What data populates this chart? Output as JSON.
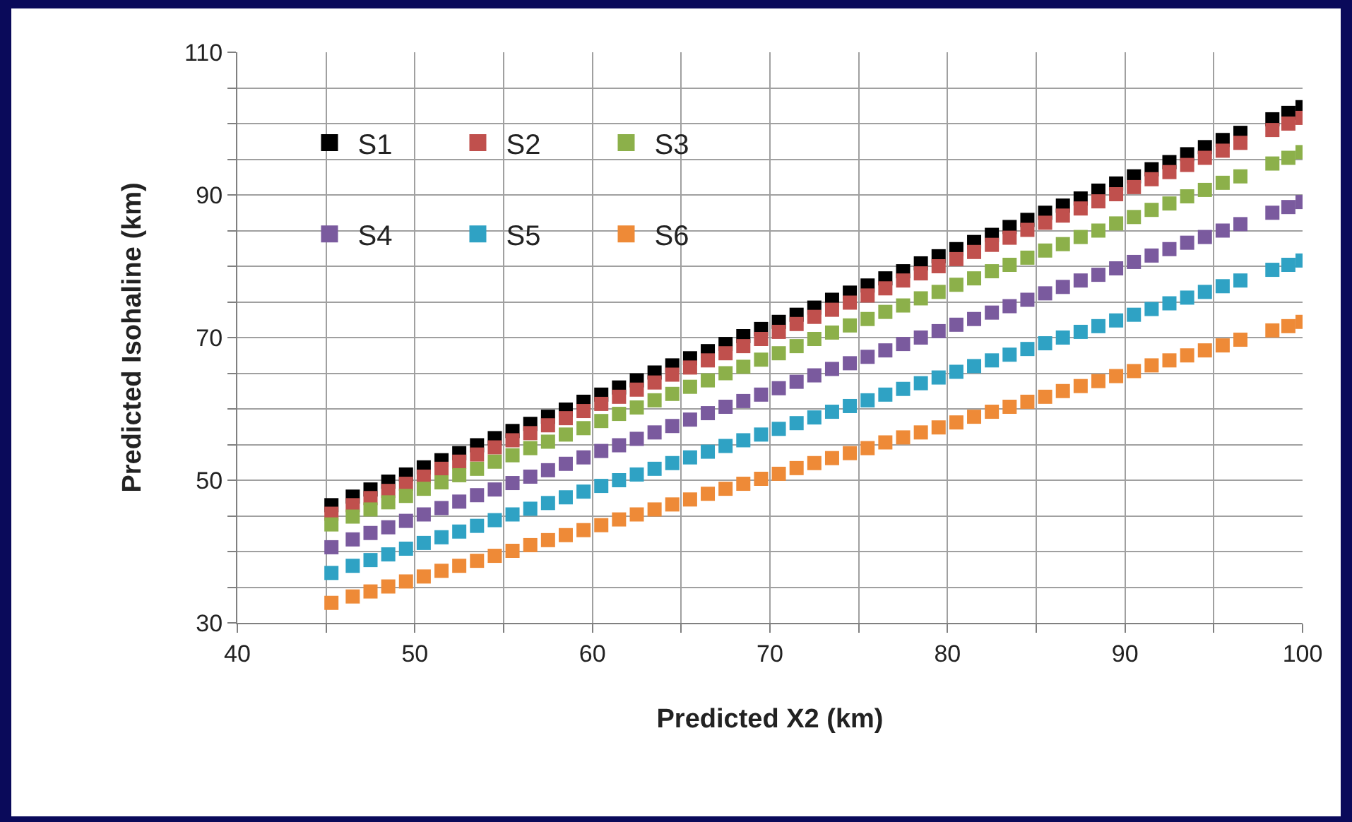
{
  "chart_data": {
    "type": "scatter",
    "xlabel": "Predicted X2 (km)",
    "ylabel": "Predicted Isohaline (km)",
    "xlim": [
      40,
      100
    ],
    "ylim": [
      30,
      110
    ],
    "xticks": [
      40,
      {
        "value": 45,
        "label": null
      },
      50,
      {
        "value": 55,
        "label": null
      },
      60,
      {
        "value": 65,
        "label": null
      },
      70,
      {
        "value": 75,
        "label": null
      },
      80,
      {
        "value": 85,
        "label": null
      },
      90,
      {
        "value": 95,
        "label": null
      },
      100
    ],
    "yticks": [
      30,
      {
        "value": 35,
        "label": null
      },
      {
        "value": 40,
        "label": null
      },
      {
        "value": 45,
        "label": null
      },
      50,
      {
        "value": 55,
        "label": null
      },
      {
        "value": 60,
        "label": null
      },
      {
        "value": 65,
        "label": null
      },
      70,
      {
        "value": 75,
        "label": null
      },
      {
        "value": 80,
        "label": null
      },
      {
        "value": 85,
        "label": null
      },
      90,
      {
        "value": 95,
        "label": null
      },
      {
        "value": 100,
        "label": null
      },
      {
        "value": 105,
        "label": null
      },
      110
    ],
    "grid": true,
    "legend": "top left",
    "marker": "square",
    "x": [
      45.3,
      46.5,
      47.5,
      48.5,
      49.5,
      50.5,
      51.5,
      52.5,
      53.5,
      54.5,
      55.5,
      56.5,
      57.5,
      58.5,
      59.5,
      60.5,
      61.5,
      62.5,
      63.5,
      64.5,
      65.5,
      66.5,
      67.5,
      68.5,
      69.5,
      70.5,
      71.5,
      72.5,
      73.5,
      74.5,
      75.5,
      76.5,
      77.5,
      78.5,
      79.5,
      80.5,
      81.5,
      82.5,
      83.5,
      84.5,
      85.5,
      86.5,
      87.5,
      88.5,
      89.5,
      90.5,
      91.5,
      92.5,
      93.5,
      94.5,
      95.5,
      96.5,
      98.3,
      99.2,
      100
    ],
    "series": [
      {
        "name": "S1",
        "color": "#000000",
        "values": [
          46.5,
          47.7,
          48.7,
          49.8,
          50.8,
          51.8,
          52.8,
          53.8,
          54.9,
          55.9,
          56.9,
          57.9,
          58.9,
          59.9,
          61.0,
          62.0,
          63.0,
          64.0,
          65.1,
          66.1,
          67.1,
          68.1,
          69.1,
          70.2,
          71.2,
          72.2,
          73.2,
          74.2,
          75.3,
          76.3,
          77.3,
          78.3,
          79.3,
          80.4,
          81.4,
          82.4,
          83.4,
          84.4,
          85.5,
          86.5,
          87.5,
          88.5,
          89.5,
          90.6,
          91.6,
          92.6,
          93.6,
          94.6,
          95.7,
          96.7,
          97.7,
          98.7,
          100.6,
          101.5,
          102.3
        ]
      },
      {
        "name": "S2",
        "color": "#c0504d",
        "values": [
          45.3,
          46.5,
          47.5,
          48.5,
          49.5,
          50.5,
          51.6,
          52.6,
          53.6,
          54.6,
          55.6,
          56.6,
          57.7,
          58.7,
          59.7,
          60.7,
          61.7,
          62.7,
          63.7,
          64.8,
          65.8,
          66.8,
          67.8,
          68.8,
          69.8,
          70.8,
          71.9,
          72.9,
          73.9,
          74.9,
          75.9,
          76.9,
          78.0,
          79.0,
          80.0,
          81.0,
          82.0,
          83.0,
          84.0,
          85.1,
          86.1,
          87.1,
          88.1,
          89.1,
          90.1,
          91.1,
          92.2,
          93.2,
          94.2,
          95.2,
          96.2,
          97.3,
          99.1,
          100.0,
          100.8
        ]
      },
      {
        "name": "S3",
        "color": "#8cb04a",
        "values": [
          43.8,
          44.9,
          45.9,
          46.9,
          47.8,
          48.8,
          49.7,
          50.7,
          51.6,
          52.6,
          53.5,
          54.5,
          55.4,
          56.4,
          57.3,
          58.3,
          59.3,
          60.2,
          61.2,
          62.1,
          63.1,
          64.0,
          65.0,
          65.9,
          66.9,
          67.8,
          68.8,
          69.8,
          70.7,
          71.7,
          72.6,
          73.6,
          74.5,
          75.5,
          76.4,
          77.4,
          78.3,
          79.3,
          80.2,
          81.2,
          82.2,
          83.1,
          84.1,
          85.0,
          86.0,
          86.9,
          87.9,
          88.8,
          89.8,
          90.7,
          91.7,
          92.6,
          94.4,
          95.2,
          96.0
        ]
      },
      {
        "name": "S4",
        "color": "#7a5a9e",
        "values": [
          40.6,
          41.7,
          42.6,
          43.4,
          44.3,
          45.2,
          46.1,
          47.0,
          47.9,
          48.7,
          49.6,
          50.5,
          51.4,
          52.3,
          53.2,
          54.1,
          54.9,
          55.8,
          56.7,
          57.6,
          58.5,
          59.4,
          60.3,
          61.1,
          62.0,
          62.9,
          63.8,
          64.7,
          65.6,
          66.4,
          67.3,
          68.2,
          69.1,
          70.0,
          70.9,
          71.8,
          72.6,
          73.5,
          74.4,
          75.3,
          76.2,
          77.1,
          78.0,
          78.8,
          79.7,
          80.6,
          81.5,
          82.4,
          83.3,
          84.1,
          85.0,
          85.9,
          87.5,
          88.3,
          89.0
        ]
      },
      {
        "name": "S5",
        "color": "#2fa2c4",
        "values": [
          37.0,
          38.0,
          38.8,
          39.6,
          40.4,
          41.2,
          42.0,
          42.8,
          43.6,
          44.4,
          45.2,
          46.0,
          46.8,
          47.6,
          48.4,
          49.2,
          50.0,
          50.8,
          51.6,
          52.4,
          53.2,
          54.0,
          54.8,
          55.6,
          56.4,
          57.2,
          58.0,
          58.8,
          59.6,
          60.4,
          61.2,
          62.0,
          62.8,
          63.6,
          64.4,
          65.2,
          66.0,
          66.8,
          67.6,
          68.4,
          69.2,
          70.0,
          70.8,
          71.6,
          72.4,
          73.2,
          74.0,
          74.8,
          75.6,
          76.4,
          77.2,
          78.0,
          79.5,
          80.2,
          80.8
        ]
      },
      {
        "name": "S6",
        "color": "#ee8a37",
        "values": [
          32.8,
          33.7,
          34.4,
          35.1,
          35.8,
          36.5,
          37.3,
          38.0,
          38.7,
          39.4,
          40.1,
          40.9,
          41.6,
          42.3,
          43.0,
          43.7,
          44.5,
          45.2,
          45.9,
          46.6,
          47.3,
          48.1,
          48.8,
          49.5,
          50.2,
          50.9,
          51.7,
          52.4,
          53.1,
          53.8,
          54.5,
          55.3,
          56.0,
          56.7,
          57.4,
          58.1,
          58.9,
          59.6,
          60.3,
          61.0,
          61.7,
          62.5,
          63.2,
          63.9,
          64.6,
          65.3,
          66.1,
          66.8,
          67.5,
          68.2,
          68.9,
          69.7,
          71.0,
          71.6,
          72.2
        ]
      }
    ]
  }
}
